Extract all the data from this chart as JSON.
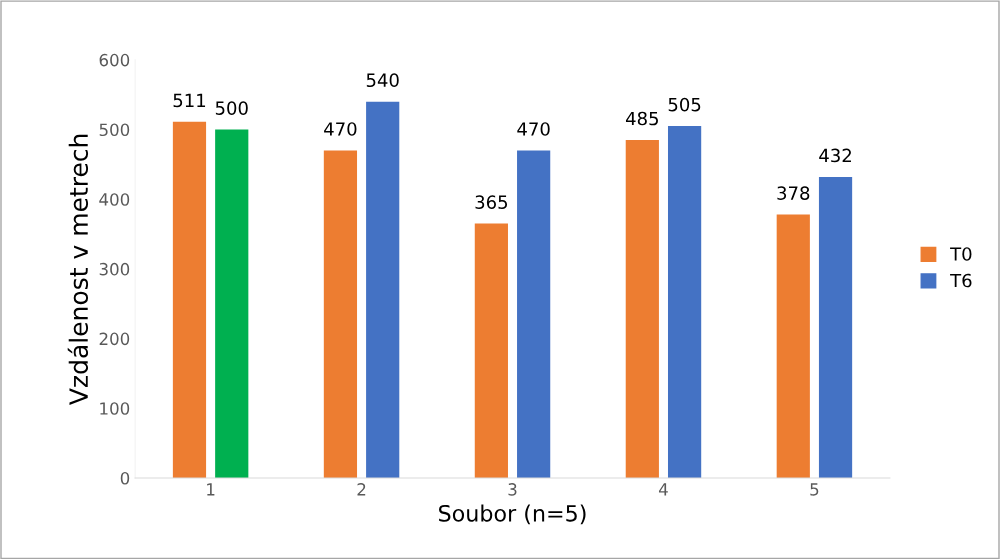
{
  "chart_data": {
    "type": "bar",
    "xlabel": "Soubor (n=5)",
    "ylabel": "Vzdálenost v metrech",
    "categories": [
      "1",
      "2",
      "3",
      "4",
      "5"
    ],
    "series": [
      {
        "name": "T0",
        "color": "#ed7d31",
        "values": [
          511,
          470,
          365,
          485,
          378
        ]
      },
      {
        "name": "T6",
        "color": "#4472c4",
        "colors": [
          "#00b050",
          "#4472c4",
          "#4472c4",
          "#4472c4",
          "#4472c4"
        ],
        "values": [
          500,
          540,
          470,
          505,
          432
        ]
      }
    ],
    "ylim": [
      0,
      600
    ],
    "yticks": [
      0,
      100,
      200,
      300,
      400,
      500,
      600
    ],
    "data_labels": true,
    "legend": "right",
    "grid": false
  }
}
